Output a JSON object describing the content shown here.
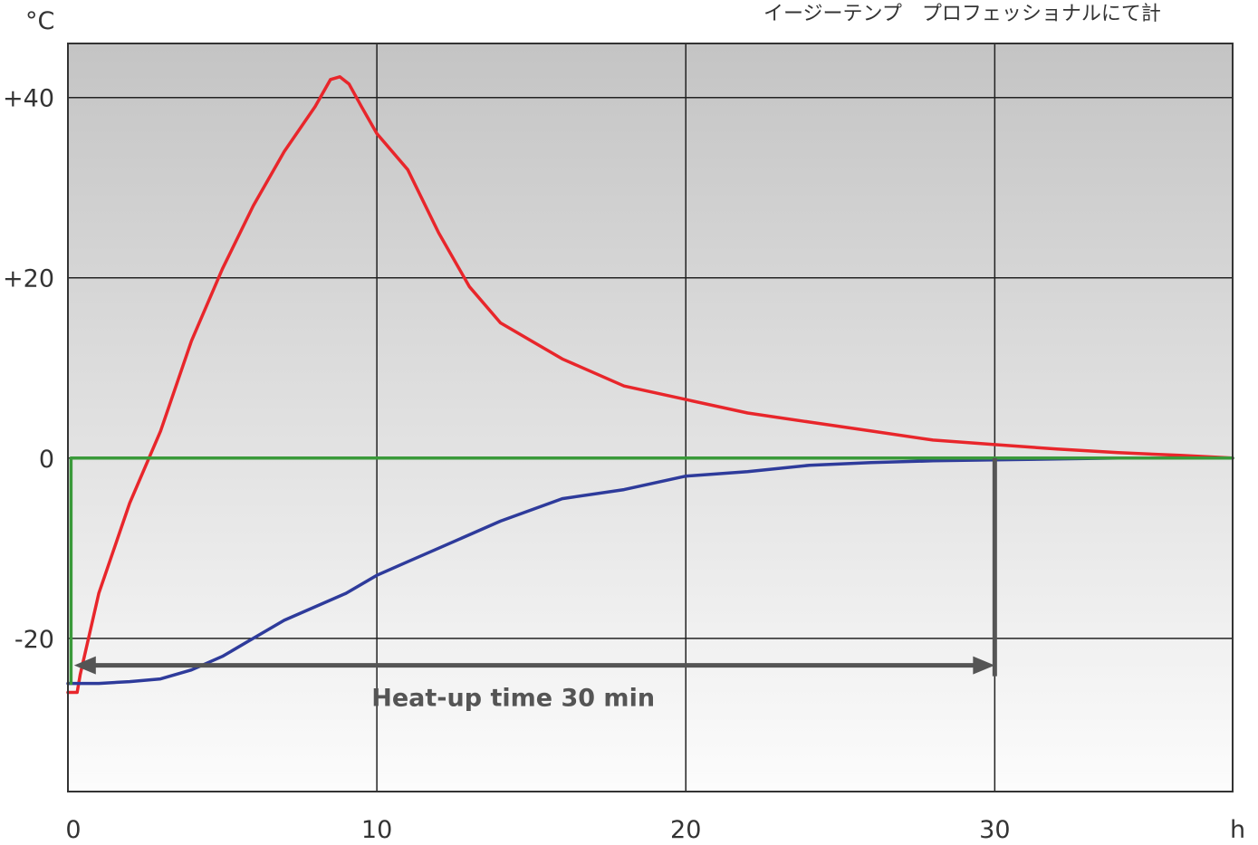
{
  "header_note": "イージーテンプ　プロフェッショナルにて計",
  "chart_data": {
    "type": "line",
    "y_unit": "°C",
    "x_unit": "h",
    "xlim": [
      0,
      37.7
    ],
    "ylim": [
      -37,
      46
    ],
    "x_ticks": [
      0,
      10,
      20,
      30
    ],
    "x_tick_labels": [
      "0",
      "10",
      "20",
      "30"
    ],
    "y_ticks": [
      40,
      20,
      0,
      -20
    ],
    "y_tick_labels": [
      "+40",
      "+20",
      "0",
      "-20"
    ],
    "grid": true,
    "annotation": {
      "text": "Heat-up time 30 min",
      "x_start": 0.2,
      "x_end": 30,
      "y": -23
    },
    "series": [
      {
        "color": "#e8262b",
        "x": [
          0,
          0.3,
          0.4,
          1,
          2,
          3,
          4,
          5,
          6,
          7,
          8,
          8.5,
          8.8,
          9.1,
          9.5,
          10,
          11,
          12,
          13,
          14,
          16,
          18,
          20,
          22,
          24,
          26,
          28,
          30,
          32,
          34,
          36,
          37.7
        ],
        "y": [
          -26,
          -26,
          -24,
          -15,
          -5,
          3,
          13,
          21,
          28,
          34,
          39,
          42,
          42.3,
          41.5,
          39,
          36,
          32,
          25,
          19,
          15,
          11,
          8,
          6.5,
          5,
          4,
          3,
          2,
          1.5,
          1,
          0.6,
          0.3,
          0
        ]
      },
      {
        "color": "#2e3b9b",
        "x": [
          0,
          1,
          2,
          3,
          4,
          5,
          6,
          7,
          8,
          9,
          10,
          11,
          12,
          14,
          16,
          18,
          20,
          22,
          24,
          26,
          28,
          30,
          32,
          34,
          36,
          37.7
        ],
        "y": [
          -25,
          -25,
          -24.8,
          -24.5,
          -23.5,
          -22,
          -20,
          -18,
          -16.5,
          -15,
          -13,
          -11.5,
          -10,
          -7,
          -4.5,
          -3.5,
          -2,
          -1.5,
          -0.8,
          -0.5,
          -0.3,
          -0.2,
          -0.1,
          0,
          0,
          0
        ]
      },
      {
        "color": "#3a9a3a",
        "x": [
          0.1,
          0.1,
          0.2,
          37.7
        ],
        "y": [
          -25,
          0,
          0,
          0
        ]
      }
    ]
  }
}
